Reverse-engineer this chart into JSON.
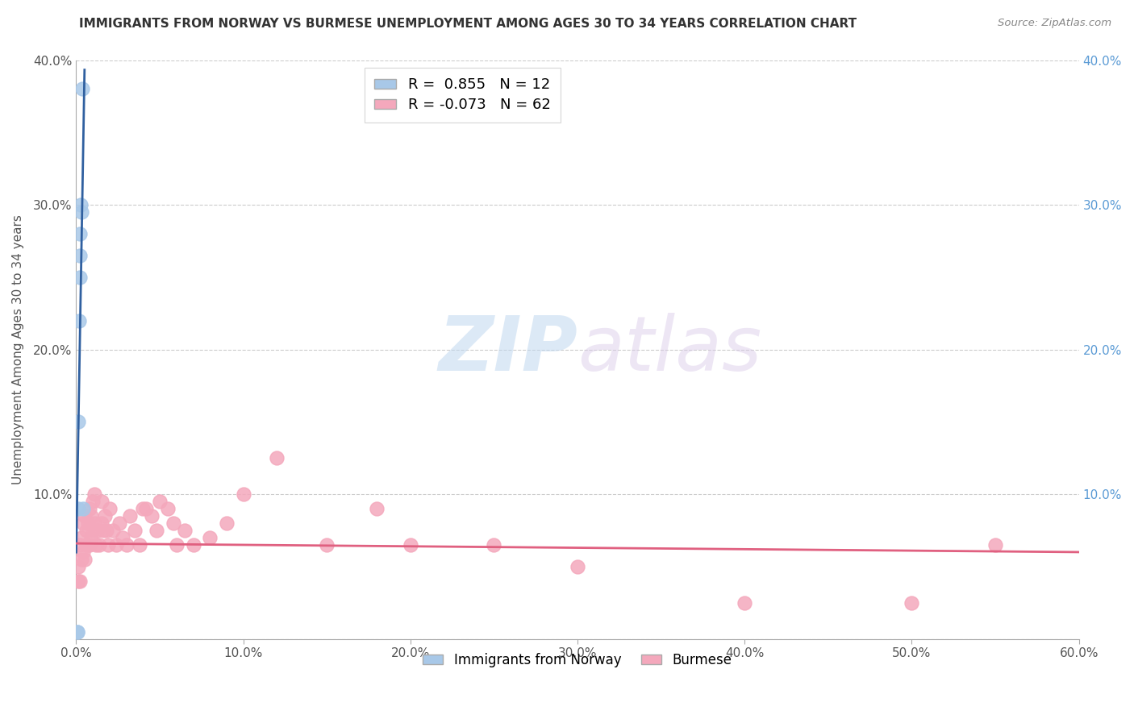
{
  "title": "IMMIGRANTS FROM NORWAY VS BURMESE UNEMPLOYMENT AMONG AGES 30 TO 34 YEARS CORRELATION CHART",
  "source": "Source: ZipAtlas.com",
  "ylabel": "Unemployment Among Ages 30 to 34 years",
  "norway_R": 0.855,
  "norway_N": 12,
  "burmese_R": -0.073,
  "burmese_N": 62,
  "norway_color": "#a8c8e8",
  "burmese_color": "#f4a8bc",
  "norway_line_color": "#3060a0",
  "burmese_line_color": "#e06080",
  "watermark_zip": "ZIP",
  "watermark_atlas": "atlas",
  "xlim": [
    0.0,
    0.6
  ],
  "ylim": [
    0.0,
    0.4
  ],
  "xticks": [
    0.0,
    0.1,
    0.2,
    0.3,
    0.4,
    0.5,
    0.6
  ],
  "yticks": [
    0.0,
    0.1,
    0.2,
    0.3,
    0.4
  ],
  "background_color": "#ffffff",
  "grid_color": "#cccccc",
  "norway_points_x": [
    0.0005,
    0.0008,
    0.001,
    0.0012,
    0.0015,
    0.002,
    0.002,
    0.0022,
    0.0025,
    0.003,
    0.0035,
    0.004
  ],
  "norway_points_y": [
    0.005,
    0.005,
    0.09,
    0.15,
    0.22,
    0.25,
    0.265,
    0.28,
    0.3,
    0.295,
    0.38,
    0.09
  ],
  "burmese_points_x": [
    0.001,
    0.001,
    0.002,
    0.002,
    0.003,
    0.003,
    0.004,
    0.004,
    0.005,
    0.005,
    0.006,
    0.006,
    0.007,
    0.007,
    0.008,
    0.008,
    0.009,
    0.009,
    0.01,
    0.01,
    0.011,
    0.011,
    0.012,
    0.013,
    0.014,
    0.015,
    0.015,
    0.016,
    0.017,
    0.018,
    0.019,
    0.02,
    0.022,
    0.024,
    0.026,
    0.028,
    0.03,
    0.032,
    0.035,
    0.038,
    0.04,
    0.042,
    0.045,
    0.048,
    0.05,
    0.055,
    0.058,
    0.06,
    0.065,
    0.07,
    0.08,
    0.09,
    0.1,
    0.12,
    0.15,
    0.18,
    0.2,
    0.25,
    0.3,
    0.4,
    0.5,
    0.55
  ],
  "burmese_points_y": [
    0.05,
    0.04,
    0.065,
    0.04,
    0.07,
    0.055,
    0.08,
    0.06,
    0.085,
    0.055,
    0.075,
    0.065,
    0.08,
    0.065,
    0.09,
    0.065,
    0.085,
    0.07,
    0.095,
    0.075,
    0.1,
    0.08,
    0.065,
    0.075,
    0.065,
    0.095,
    0.08,
    0.075,
    0.085,
    0.075,
    0.065,
    0.09,
    0.075,
    0.065,
    0.08,
    0.07,
    0.065,
    0.085,
    0.075,
    0.065,
    0.09,
    0.09,
    0.085,
    0.075,
    0.095,
    0.09,
    0.08,
    0.065,
    0.075,
    0.065,
    0.07,
    0.08,
    0.1,
    0.125,
    0.065,
    0.09,
    0.065,
    0.065,
    0.05,
    0.025,
    0.025,
    0.065
  ],
  "burmese_trend_x0": 0.0,
  "burmese_trend_y0": 0.066,
  "burmese_trend_x1": 0.6,
  "burmese_trend_y1": 0.06
}
